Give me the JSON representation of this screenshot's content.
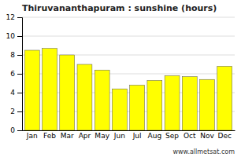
{
  "chart_data": {
    "type": "bar",
    "title": "Thiruvananthapuram : sunshine (hours)",
    "categories": [
      "Jan",
      "Feb",
      "Mar",
      "Apr",
      "May",
      "Jun",
      "Jul",
      "Aug",
      "Sep",
      "Oct",
      "Nov",
      "Dec"
    ],
    "values": [
      8.5,
      8.7,
      8.0,
      7.0,
      6.4,
      4.4,
      4.8,
      5.3,
      5.8,
      5.7,
      5.4,
      6.8
    ],
    "color": "#ffff00",
    "ylim": [
      0,
      12
    ],
    "yticks": [
      0,
      2,
      4,
      6,
      8,
      10,
      12
    ],
    "grid": true,
    "annotations": [
      "www.allmetsat.com"
    ]
  }
}
